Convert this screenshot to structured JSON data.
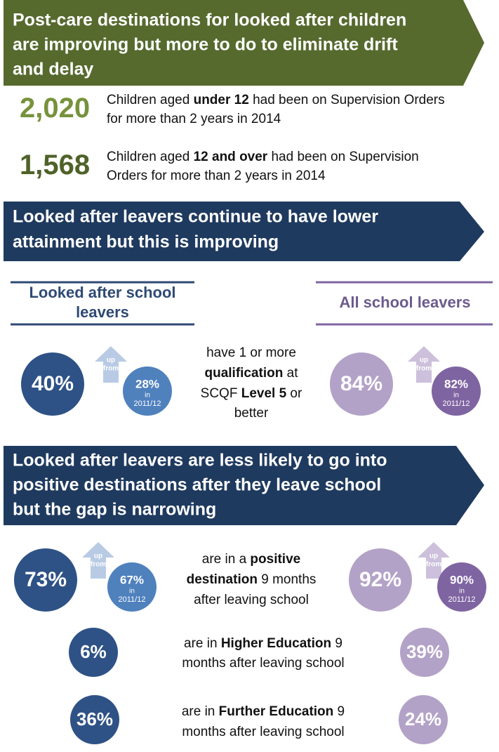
{
  "banners": [
    {
      "lines": [
        "Post-care destinations for looked after children",
        "are improving but more to do to eliminate drift",
        "and delay"
      ]
    },
    {
      "lines": [
        "Looked after leavers continue to have lower",
        "attainment but this is improving"
      ]
    },
    {
      "lines": [
        "Looked after leavers are less likely to go into",
        "positive destinations after they leave school",
        "but the gap is narrowing"
      ]
    }
  ],
  "supervision": [
    {
      "number": "2,020",
      "lines": [
        [
          {
            "text": "Children aged "
          },
          {
            "text": "under 12",
            "bold": true
          },
          {
            "text": " had been on Supervision Orders"
          }
        ],
        [
          {
            "text": "for more than 2 years in 2014"
          }
        ]
      ]
    },
    {
      "number": "1,568",
      "lines": [
        [
          {
            "text": "Children aged "
          },
          {
            "text": "12 and over",
            "bold": true
          },
          {
            "text": " had been on Supervision"
          }
        ],
        [
          {
            "text": "Orders for more than 2 years in 2014"
          }
        ]
      ]
    }
  ],
  "columns": {
    "left": [
      "Looked after school",
      "leavers"
    ],
    "right": [
      "All school leavers"
    ]
  },
  "rows": [
    {
      "left": "40%",
      "left_previous": {
        "arrow": [
          "up",
          "from"
        ],
        "value": "28%",
        "in": "in",
        "year": "2011/12"
      },
      "lines": [
        [
          {
            "text": "have 1 or more"
          }
        ],
        [
          {
            "text": "qualification",
            "bold": true
          },
          {
            "text": " at"
          }
        ],
        [
          {
            "text": "SCQF "
          },
          {
            "text": "Level 5",
            "bold": true
          },
          {
            "text": " or"
          }
        ],
        [
          {
            "text": "better"
          }
        ]
      ],
      "right": "84%",
      "right_previous": {
        "arrow": [
          "up",
          "from"
        ],
        "value": "82%",
        "in": "in",
        "year": "2011/12"
      }
    },
    {
      "left": "73%",
      "left_previous": {
        "arrow": [
          "up",
          "from"
        ],
        "value": "67%",
        "in": "in",
        "year": "2011/12"
      },
      "lines": [
        [
          {
            "text": "are in a "
          },
          {
            "text": "positive",
            "bold": true
          }
        ],
        [
          {
            "text": "destination",
            "bold": true
          },
          {
            "text": " 9 months"
          }
        ],
        [
          {
            "text": "after leaving school"
          }
        ]
      ],
      "right": "92%",
      "right_previous": {
        "arrow": [
          "up",
          "from"
        ],
        "value": "90%",
        "in": "in",
        "year": "2011/12"
      }
    },
    {
      "left": "6%",
      "lines": [
        [
          {
            "text": "are in "
          },
          {
            "text": "Higher Education",
            "bold": true
          },
          {
            "text": " 9"
          }
        ],
        [
          {
            "text": "months after leaving school"
          }
        ]
      ],
      "right": "39%"
    },
    {
      "left": "36%",
      "lines": [
        [
          {
            "text": "are in "
          },
          {
            "text": "Further Education",
            "bold": true
          },
          {
            "text": " 9"
          }
        ],
        [
          {
            "text": "months after leaving school"
          }
        ]
      ],
      "right": "24%"
    }
  ]
}
